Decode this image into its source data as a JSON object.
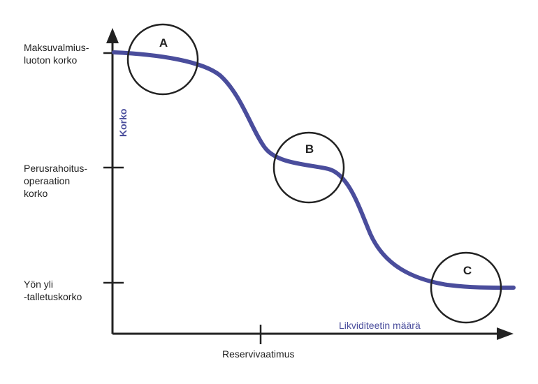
{
  "colors": {
    "curve": "#4a4d9c",
    "axis": "#222222",
    "axis_label_accent": "#4a4d9c",
    "circle": "#222222"
  },
  "y_axis": {
    "title": "Korko",
    "ticks": [
      {
        "label": "Maksuvalmius-\nluoton korko"
      },
      {
        "label": "Perusrahoitus-\noperaation\nkorko"
      },
      {
        "label": "Yön yli\n-talletuskorko"
      }
    ]
  },
  "x_axis": {
    "title": "Likviditeetin määrä",
    "ticks": [
      {
        "label": "Reservivaatimus"
      }
    ]
  },
  "regions": [
    {
      "label": "A"
    },
    {
      "label": "B"
    },
    {
      "label": "C"
    }
  ]
}
